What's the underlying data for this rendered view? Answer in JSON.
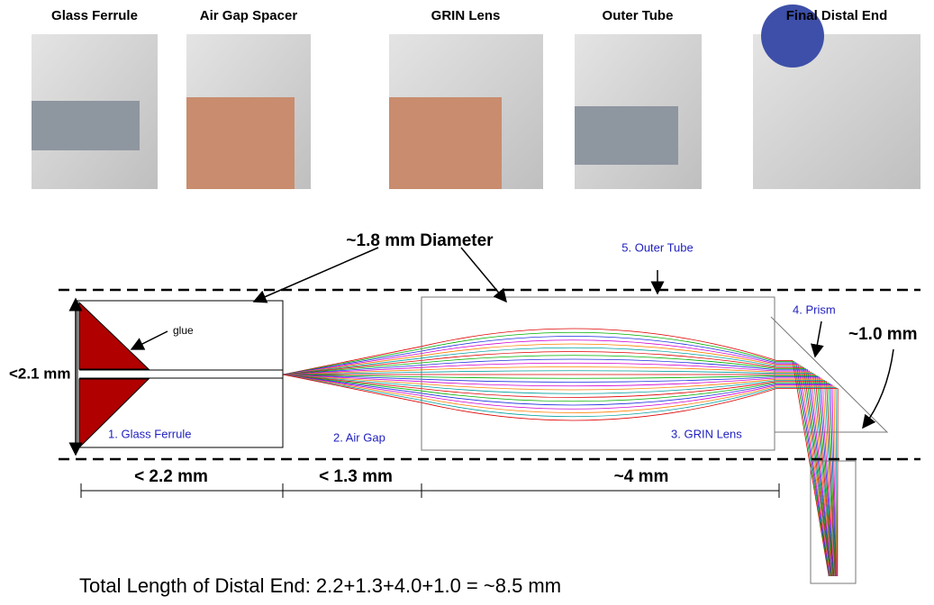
{
  "photos": [
    {
      "label": "Glass Ferrule"
    },
    {
      "label": "Air Gap Spacer"
    },
    {
      "label": "GRIN Lens"
    },
    {
      "label": "Outer Tube"
    },
    {
      "label": "Final Distal End"
    }
  ],
  "diagram": {
    "diameter": "~1.8 mm Diameter",
    "outer_tube": "5. Outer Tube",
    "prism": "4. Prism",
    "prism_size": "~1.0 mm",
    "height": "<2.1 mm",
    "glue": "glue",
    "glass_ferrule": "1. Glass Ferrule",
    "air_gap": "2. Air Gap",
    "grin_lens": "3. GRIN Lens",
    "dimensions": [
      "< 2.2 mm",
      "< 1.3 mm",
      "~4 mm"
    ]
  },
  "total": "Total Length of Distal End:  2.2+1.3+4.0+1.0 =  ~8.5 mm"
}
